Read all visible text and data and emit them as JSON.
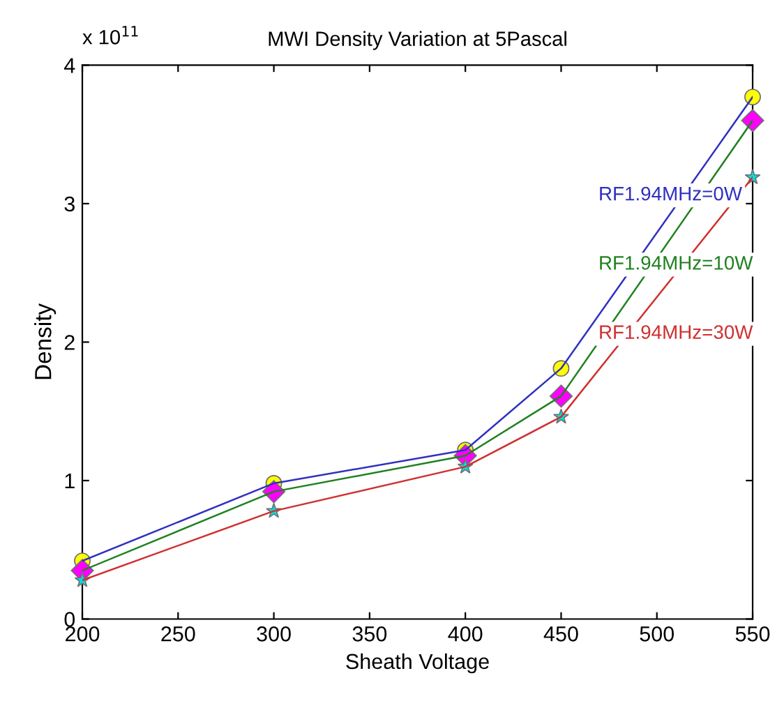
{
  "chart_data": {
    "type": "line",
    "title": "MWI Density Variation at 5Pascal",
    "xlabel": "Sheath Voltage",
    "ylabel": "Density",
    "annotations": [
      "x 10$^{11}$"
    ],
    "x": [
      200,
      300,
      400,
      450,
      550
    ],
    "series": [
      {
        "name": "RF1.94MHz=0W",
        "color": "#3030c0",
        "colors": [
          "#ffff00",
          "#ffff00",
          "#ffff00",
          "#ffff00",
          "#ffff00"
        ],
        "marker": "circle",
        "values": [
          0.42,
          0.98,
          1.22,
          1.81,
          3.77
        ]
      },
      {
        "name": "RF1.94MHz=10W",
        "color": "#208020",
        "colors": [
          "#ff00ff",
          "#ff00ff",
          "#ff00ff",
          "#ff00ff",
          "#ff00ff"
        ],
        "marker": "diamond",
        "values": [
          0.35,
          0.92,
          1.18,
          1.61,
          3.6
        ]
      },
      {
        "name": "RF1.94MHz=30W",
        "color": "#d03030",
        "colors": [
          "#00e0e0",
          "#00e0e0",
          "#00e0e0",
          "#00e0e0",
          "#00e0e0"
        ],
        "marker": "star",
        "values": [
          0.28,
          0.78,
          1.1,
          1.46,
          3.19
        ]
      }
    ],
    "xlim": [
      200,
      550
    ],
    "xticks": [
      200,
      250,
      300,
      350,
      400,
      450,
      500,
      550
    ],
    "ylim": [
      0,
      4
    ],
    "yticks": [
      0,
      1,
      2,
      3,
      4
    ],
    "grid": false,
    "legend": false,
    "line_style": "solid"
  }
}
